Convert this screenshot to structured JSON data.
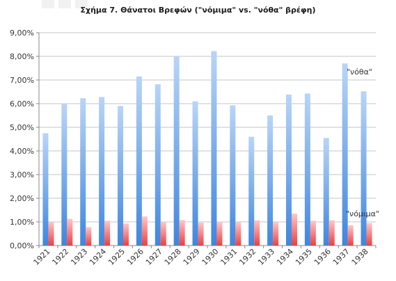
{
  "chart_data": {
    "type": "bar",
    "title": "Σχήμα 7.  Θάνατοι Βρεφών (\"νόμιμα\" vs. \"νόθα\" βρέφη)",
    "categories": [
      "1921",
      "1922",
      "1923",
      "1924",
      "1925",
      "1926",
      "1927",
      "1928",
      "1929",
      "1930",
      "1931",
      "1932",
      "1933",
      "1934",
      "1935",
      "1936",
      "1937",
      "1938"
    ],
    "series": [
      {
        "name": "\"νόθα\"",
        "color": "#4a8fe0",
        "values": [
          4.75,
          5.98,
          6.23,
          6.28,
          5.9,
          7.15,
          6.82,
          8.0,
          6.1,
          8.22,
          5.93,
          4.6,
          5.5,
          6.38,
          6.43,
          4.55,
          7.7,
          6.52
        ]
      },
      {
        "name": "\"νόμιμα\"",
        "color": "#ef4b4b",
        "values": [
          1.0,
          1.13,
          0.78,
          1.05,
          0.93,
          1.23,
          1.0,
          1.08,
          0.97,
          1.0,
          0.98,
          1.07,
          0.98,
          1.35,
          1.05,
          1.07,
          0.86,
          0.95
        ]
      }
    ],
    "y_ticks": [
      "0,00%",
      "1,00%",
      "2,00%",
      "3,00%",
      "4,00%",
      "5,00%",
      "6,00%",
      "7,00%",
      "8,00%",
      "9,00%"
    ],
    "ylim": [
      0,
      9
    ],
    "xlabel": "",
    "ylabel": "",
    "grid": true,
    "legend": "inline labels at right"
  }
}
